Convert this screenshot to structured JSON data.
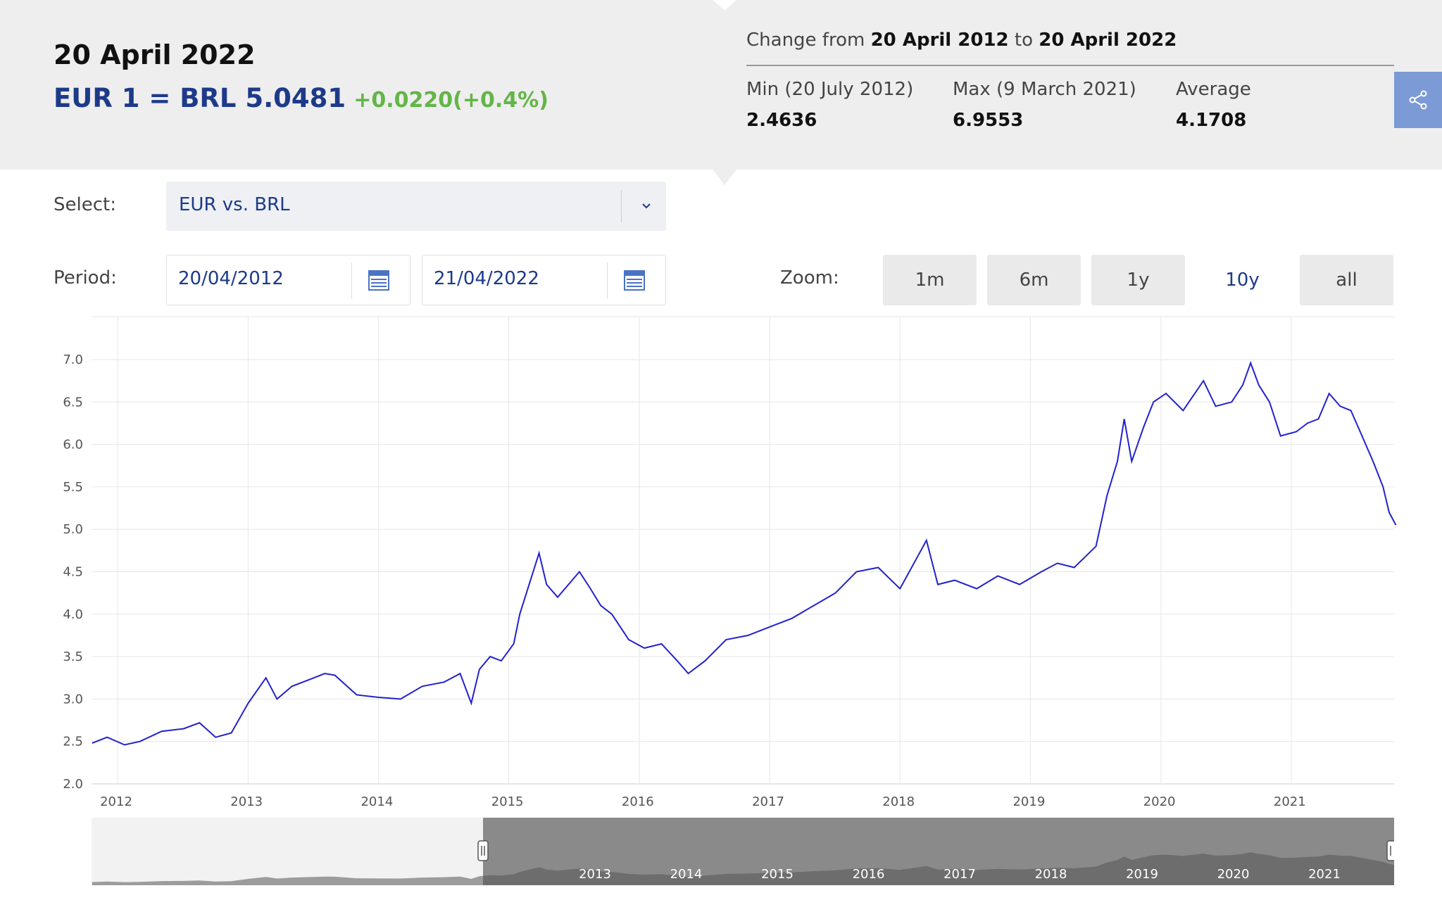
{
  "header": {
    "date_title": "20 April 2022",
    "rate_text": "EUR 1 = BRL 5.0481",
    "rate_change": "+0.0220(+0.4%)",
    "change_prefix": "Change from",
    "change_from": "20 April 2012",
    "change_mid": "to",
    "change_to": "20 April 2022",
    "min_label": "Min (20 July 2012)",
    "min_value": "2.4636",
    "max_label": "Max (9 March 2021)",
    "max_value": "6.9553",
    "avg_label": "Average",
    "avg_value": "4.1708",
    "share_icon": "share-icon"
  },
  "form": {
    "select_label": "Select:",
    "select_value": "EUR vs. BRL",
    "period_label": "Period:",
    "period_from": "20/04/2012",
    "period_to": "21/04/2022",
    "zoom_label": "Zoom:",
    "zoom_buttons": [
      "1m",
      "6m",
      "1y",
      "10y",
      "all"
    ],
    "zoom_active": "10y"
  },
  "colors": {
    "line": "#2222cc",
    "rate_text": "#1d3a8a",
    "change_positive": "#63b547",
    "share_button": "#7b9ad6"
  },
  "chart_data": {
    "type": "line",
    "title": "",
    "xlabel": "",
    "ylabel": "",
    "x_tick_labels": [
      "2012",
      "2013",
      "2014",
      "2015",
      "2016",
      "2017",
      "2018",
      "2019",
      "2020",
      "2021"
    ],
    "y_tick_labels": [
      "2.0",
      "2.5",
      "3.0",
      "3.5",
      "4.0",
      "4.5",
      "5.0",
      "5.5",
      "6.0",
      "6.5",
      "7.0"
    ],
    "ylim": [
      2.0,
      7.0
    ],
    "xlim": [
      "2012-04-20",
      "2022-04-20"
    ],
    "grid": true,
    "legend": "none",
    "navigator_labels": [
      "2013",
      "2014",
      "2015",
      "2016",
      "2017",
      "2018",
      "2019",
      "2020",
      "2021"
    ],
    "series": [
      {
        "x": [
          "2012-04-20",
          "2012-06-01",
          "2012-07-20",
          "2012-09-01",
          "2012-11-01",
          "2013-01-01",
          "2013-02-15",
          "2013-04-01",
          "2013-05-15",
          "2013-07-01",
          "2013-08-20",
          "2013-09-20",
          "2013-11-01",
          "2014-01-01",
          "2014-02-01",
          "2014-03-01",
          "2014-05-01",
          "2014-07-01",
          "2014-09-01",
          "2014-11-01",
          "2015-01-01",
          "2015-02-15",
          "2015-03-18",
          "2015-04-10",
          "2015-05-10",
          "2015-06-10",
          "2015-07-15",
          "2015-08-01",
          "2015-09-24",
          "2015-10-15",
          "2015-11-15",
          "2016-01-15",
          "2016-02-15",
          "2016-03-15",
          "2016-04-15",
          "2016-06-01",
          "2016-07-15",
          "2016-09-01",
          "2016-10-15",
          "2016-11-15",
          "2017-01-01",
          "2017-03-01",
          "2017-05-01",
          "2017-07-01",
          "2017-09-01",
          "2017-11-01",
          "2018-01-01",
          "2018-03-01",
          "2018-05-01",
          "2018-07-01",
          "2018-09-13",
          "2018-10-15",
          "2018-12-01",
          "2019-02-01",
          "2019-04-01",
          "2019-06-01",
          "2019-08-01",
          "2019-09-15",
          "2019-11-01",
          "2020-01-01",
          "2020-02-01",
          "2020-03-01",
          "2020-03-20",
          "2020-04-10",
          "2020-05-13",
          "2020-06-10",
          "2020-07-15",
          "2020-09-01",
          "2020-10-28",
          "2020-12-01",
          "2021-01-15",
          "2021-02-15",
          "2021-03-09",
          "2021-04-01",
          "2021-05-01",
          "2021-06-01",
          "2021-07-15",
          "2021-08-15",
          "2021-09-15",
          "2021-10-15",
          "2021-11-15",
          "2021-12-15",
          "2022-01-15",
          "2022-02-15",
          "2022-03-15",
          "2022-04-01",
          "2022-04-20"
        ],
        "y": [
          2.48,
          2.55,
          2.46,
          2.5,
          2.62,
          2.65,
          2.72,
          2.55,
          2.6,
          2.95,
          3.25,
          3.0,
          3.15,
          3.25,
          3.3,
          3.28,
          3.05,
          3.02,
          3.0,
          3.15,
          3.2,
          3.3,
          2.95,
          3.35,
          3.5,
          3.45,
          3.65,
          4.0,
          4.72,
          4.35,
          4.2,
          4.5,
          4.3,
          4.1,
          4.0,
          3.7,
          3.6,
          3.65,
          3.45,
          3.3,
          3.45,
          3.7,
          3.75,
          3.85,
          3.95,
          4.1,
          4.25,
          4.5,
          4.55,
          4.3,
          4.87,
          4.35,
          4.4,
          4.3,
          4.45,
          4.35,
          4.5,
          4.6,
          4.55,
          4.8,
          5.4,
          5.8,
          6.3,
          5.8,
          6.2,
          6.5,
          6.6,
          6.4,
          6.75,
          6.45,
          6.5,
          6.7,
          6.96,
          6.7,
          6.5,
          6.1,
          6.15,
          6.25,
          6.3,
          6.6,
          6.45,
          6.4,
          6.1,
          5.8,
          5.5,
          5.2,
          5.05
        ]
      }
    ]
  }
}
